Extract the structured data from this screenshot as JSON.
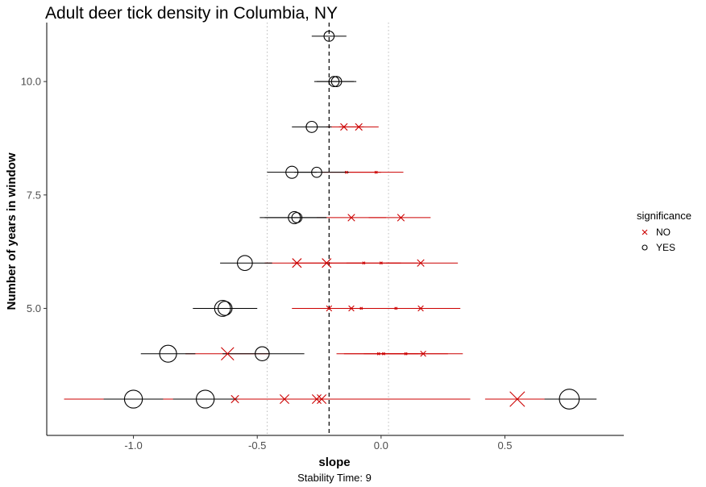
{
  "chart_data": {
    "type": "scatter",
    "title": "Adult deer tick density in Columbia, NY",
    "xlabel": "slope",
    "ylabel": "Number of years in window",
    "caption": "Stability Time: 9",
    "xlim": [
      -1.35,
      0.98
    ],
    "ylim": [
      2.2,
      11.3
    ],
    "x_ticks": [
      -1.0,
      -0.5,
      0.0,
      0.5
    ],
    "x_tick_labels": [
      "-1.0",
      "-0.5",
      "0.0",
      "0.5"
    ],
    "y_ticks": [
      5.0,
      7.5,
      10.0
    ],
    "y_tick_labels": [
      "5.0",
      "7.5",
      "10.0"
    ],
    "reference_line": {
      "x": -0.21,
      "style": "dashed"
    },
    "ci_lines": [
      -0.46,
      0.03
    ],
    "grid": false,
    "legend": {
      "title": "significance",
      "position": "right",
      "entries": [
        {
          "label": "NO",
          "marker": "x",
          "color": "#cc0000"
        },
        {
          "label": "YES",
          "marker": "circle",
          "color": "#000000"
        }
      ]
    },
    "colors": {
      "NO": "#cc0000",
      "YES": "#000000"
    },
    "points": [
      {
        "y": 11,
        "slope": -0.21,
        "lo": -0.28,
        "hi": -0.14,
        "sig": "YES",
        "n": 9
      },
      {
        "y": 10,
        "slope": -0.19,
        "lo": -0.27,
        "hi": -0.1,
        "sig": "YES",
        "n": 9
      },
      {
        "y": 10,
        "slope": -0.18,
        "lo": -0.26,
        "hi": -0.11,
        "sig": "YES",
        "n": 9
      },
      {
        "y": 9,
        "slope": -0.28,
        "lo": -0.36,
        "hi": -0.2,
        "sig": "YES",
        "n": 10
      },
      {
        "y": 9,
        "slope": -0.15,
        "lo": -0.22,
        "hi": -0.07,
        "sig": "NO",
        "n": 8
      },
      {
        "y": 9,
        "slope": -0.09,
        "lo": -0.17,
        "hi": -0.01,
        "sig": "NO",
        "n": 8
      },
      {
        "y": 8,
        "slope": -0.36,
        "lo": -0.46,
        "hi": -0.26,
        "sig": "YES",
        "n": 11
      },
      {
        "y": 8,
        "slope": -0.26,
        "lo": -0.35,
        "hi": -0.13,
        "sig": "YES",
        "n": 9
      },
      {
        "y": 8,
        "slope": -0.14,
        "lo": -0.24,
        "hi": 0.0,
        "sig": "NO",
        "n": 2
      },
      {
        "y": 8,
        "slope": -0.02,
        "lo": -0.14,
        "hi": 0.09,
        "sig": "NO",
        "n": 2
      },
      {
        "y": 7,
        "slope": -0.35,
        "lo": -0.49,
        "hi": -0.22,
        "sig": "YES",
        "n": 11
      },
      {
        "y": 7,
        "slope": -0.34,
        "lo": -0.47,
        "hi": -0.22,
        "sig": "YES",
        "n": 9
      },
      {
        "y": 7,
        "slope": -0.12,
        "lo": -0.26,
        "hi": 0.02,
        "sig": "NO",
        "n": 8
      },
      {
        "y": 7,
        "slope": 0.08,
        "lo": -0.05,
        "hi": 0.2,
        "sig": "NO",
        "n": 8
      },
      {
        "y": 6,
        "slope": -0.55,
        "lo": -0.65,
        "hi": -0.44,
        "sig": "YES",
        "n": 14
      },
      {
        "y": 6,
        "slope": -0.34,
        "lo": -0.47,
        "hi": -0.2,
        "sig": "NO",
        "n": 11
      },
      {
        "y": 6,
        "slope": -0.22,
        "lo": -0.36,
        "hi": -0.08,
        "sig": "NO",
        "n": 11
      },
      {
        "y": 6,
        "slope": -0.07,
        "lo": -0.21,
        "hi": 0.08,
        "sig": "NO",
        "n": 2
      },
      {
        "y": 6,
        "slope": 0.0,
        "lo": -0.14,
        "hi": 0.15,
        "sig": "NO",
        "n": 2
      },
      {
        "y": 6,
        "slope": 0.16,
        "lo": 0.02,
        "hi": 0.31,
        "sig": "NO",
        "n": 8
      },
      {
        "y": 5,
        "slope": -0.64,
        "lo": -0.76,
        "hi": -0.51,
        "sig": "YES",
        "n": 15
      },
      {
        "y": 5,
        "slope": -0.63,
        "lo": -0.75,
        "hi": -0.5,
        "sig": "YES",
        "n": 13
      },
      {
        "y": 5,
        "slope": -0.21,
        "lo": -0.36,
        "hi": -0.06,
        "sig": "NO",
        "n": 6
      },
      {
        "y": 5,
        "slope": -0.12,
        "lo": -0.27,
        "hi": 0.04,
        "sig": "NO",
        "n": 6
      },
      {
        "y": 5,
        "slope": -0.08,
        "lo": -0.24,
        "hi": 0.07,
        "sig": "NO",
        "n": 2
      },
      {
        "y": 5,
        "slope": 0.06,
        "lo": -0.1,
        "hi": 0.22,
        "sig": "NO",
        "n": 2
      },
      {
        "y": 5,
        "slope": 0.16,
        "lo": 0.0,
        "hi": 0.32,
        "sig": "NO",
        "n": 6
      },
      {
        "y": 4,
        "slope": -0.86,
        "lo": -0.97,
        "hi": -0.75,
        "sig": "YES",
        "n": 16
      },
      {
        "y": 4,
        "slope": -0.62,
        "lo": -0.79,
        "hi": -0.45,
        "sig": "NO",
        "n": 16
      },
      {
        "y": 4,
        "slope": -0.48,
        "lo": -0.64,
        "hi": -0.31,
        "sig": "YES",
        "n": 13
      },
      {
        "y": 4,
        "slope": -0.01,
        "lo": -0.18,
        "hi": 0.15,
        "sig": "NO",
        "n": 2
      },
      {
        "y": 4,
        "slope": 0.01,
        "lo": -0.15,
        "hi": 0.17,
        "sig": "NO",
        "n": 2
      },
      {
        "y": 4,
        "slope": 0.1,
        "lo": -0.07,
        "hi": 0.27,
        "sig": "NO",
        "n": 2
      },
      {
        "y": 4,
        "slope": 0.17,
        "lo": 0.0,
        "hi": 0.33,
        "sig": "NO",
        "n": 6
      },
      {
        "y": 3,
        "slope": -1.0,
        "lo": -1.12,
        "hi": -0.88,
        "sig": "YES",
        "n": 17
      },
      {
        "y": 3,
        "slope": -0.71,
        "lo": -0.84,
        "hi": -0.58,
        "sig": "YES",
        "n": 17
      },
      {
        "y": 3,
        "slope": -0.59,
        "lo": -1.28,
        "hi": 0.1,
        "sig": "NO",
        "n": 9
      },
      {
        "y": 3,
        "slope": -0.39,
        "lo": -1.05,
        "hi": 0.27,
        "sig": "NO",
        "n": 11
      },
      {
        "y": 3,
        "slope": -0.26,
        "lo": -0.86,
        "hi": 0.35,
        "sig": "NO",
        "n": 11
      },
      {
        "y": 3,
        "slope": -0.24,
        "lo": -0.84,
        "hi": 0.36,
        "sig": "NO",
        "n": 11
      },
      {
        "y": 3,
        "slope": 0.55,
        "lo": 0.42,
        "hi": 0.68,
        "sig": "NO",
        "n": 19
      },
      {
        "y": 3,
        "slope": 0.76,
        "lo": 0.66,
        "hi": 0.87,
        "sig": "YES",
        "n": 19
      }
    ]
  }
}
